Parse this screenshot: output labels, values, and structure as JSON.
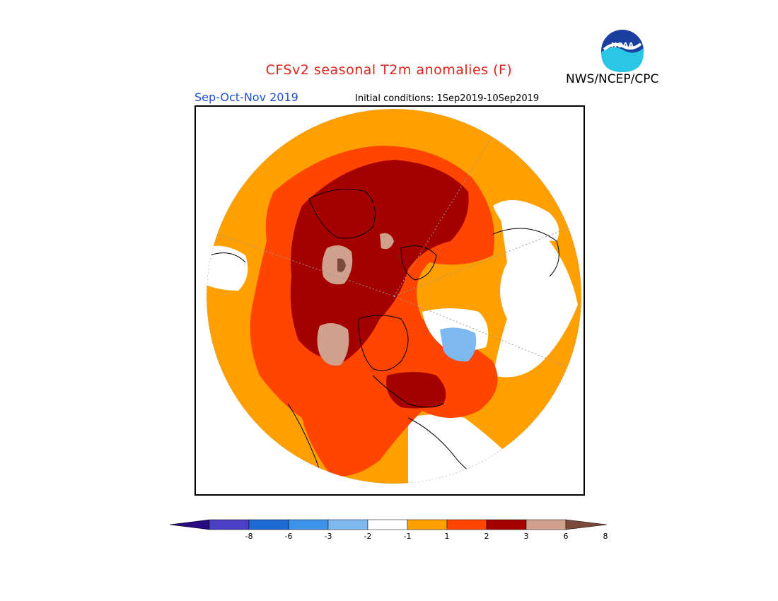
{
  "header": {
    "title": "CFSv2 seasonal T2m anomalies (F)",
    "agency": "NWS/NCEP/CPC",
    "logo_text": "NOAA",
    "season": "Sep-Oct-Nov 2019",
    "initial_conditions": "Initial conditions: 1Sep2019-10Sep2019"
  },
  "colors": {
    "title": "#e0221b",
    "season": "#1e50d8",
    "levels": [
      "#2a0a80",
      "#4b3fc4",
      "#1e6bd3",
      "#3c93e8",
      "#7db8ef",
      "#ffffff",
      "#ffa000",
      "#ff4500",
      "#a50000",
      "#cfa18c",
      "#7b4a3a"
    ]
  },
  "legend": {
    "tick_labels": [
      "-8",
      "-6",
      "-3",
      "-2",
      "-1",
      "1",
      "2",
      "3",
      "6",
      "8"
    ],
    "levels_label_note": ""
  }
}
